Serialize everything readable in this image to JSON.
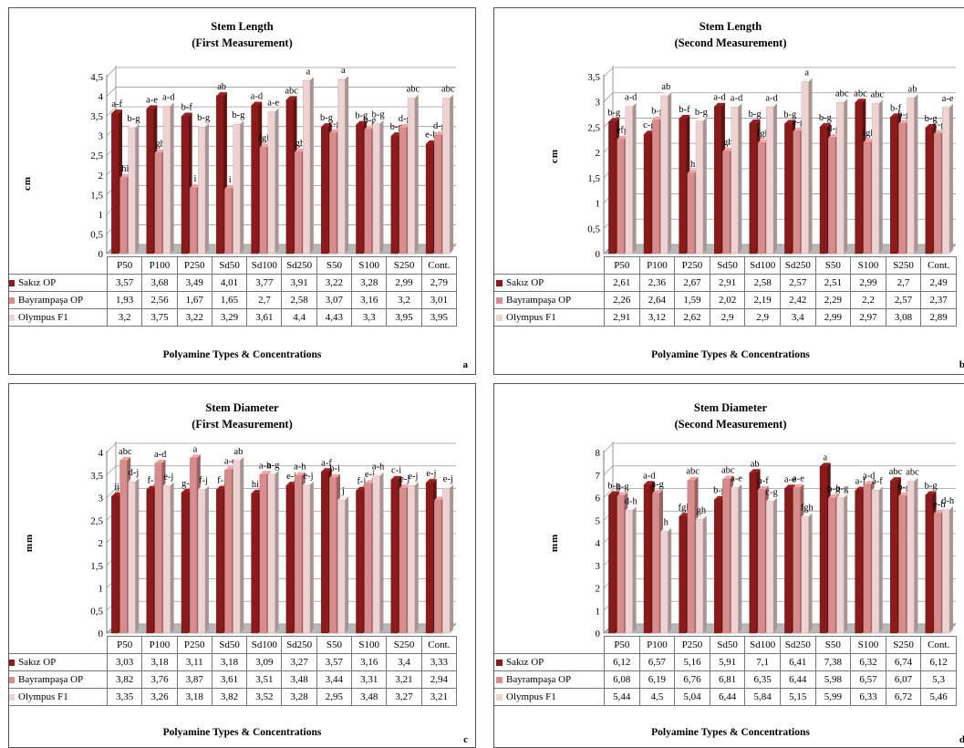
{
  "colors": {
    "sakiz": "#8b1a1a",
    "bayrampasa": "#d98c8c",
    "olympus": "#efd3d3",
    "grid": "#9a9a9a",
    "floor": "#b8b8b8"
  },
  "chart_data": [
    {
      "id": "a",
      "type": "bar",
      "title_line1": "Stem Length",
      "title_line2": "(First Measurement)",
      "ylabel": "cm",
      "xlabel": "Polyamine Types & Concentrations",
      "panel_label": "a",
      "ylim": [
        0,
        4.5
      ],
      "yticks": [
        "0",
        "0,5",
        "1",
        "1,5",
        "2",
        "2,5",
        "3",
        "3,5",
        "4",
        "4,5"
      ],
      "categories": [
        "P50",
        "P100",
        "P250",
        "Sd50",
        "Sd100",
        "Sd250",
        "S50",
        "S100",
        "S250",
        "Cont."
      ],
      "series": [
        {
          "name": "Sakız OP",
          "values": [
            3.57,
            3.68,
            3.49,
            4.01,
            3.77,
            3.91,
            3.22,
            3.28,
            2.99,
            2.79
          ],
          "display": [
            "3,57",
            "3,68",
            "3,49",
            "4,01",
            "3,77",
            "3,91",
            "3,22",
            "3,28",
            "2,99",
            "2,79"
          ],
          "letters": [
            "a-f",
            "a-e",
            "b-f",
            "ab",
            "a-d",
            "abc",
            "b-g",
            "b-g",
            "b-g",
            "e-h"
          ]
        },
        {
          "name": "Bayrampaşa OP",
          "values": [
            1.93,
            2.56,
            1.67,
            1.65,
            2.7,
            2.58,
            3.07,
            3.16,
            3.2,
            3.01
          ],
          "display": [
            "1,93",
            "2,56",
            "1,67",
            "1,65",
            "2,7",
            "2,58",
            "3,07",
            "3,16",
            "3,2",
            "3,01"
          ],
          "letters": [
            "hi",
            "gh",
            "i",
            "i",
            "fgh",
            "gh",
            "c-g",
            "b-g",
            "d-g",
            "d-g"
          ]
        },
        {
          "name": "Olympus F1",
          "values": [
            3.2,
            3.75,
            3.22,
            3.29,
            3.61,
            4.4,
            4.43,
            3.3,
            3.95,
            3.95
          ],
          "display": [
            "3,2",
            "3,75",
            "3,22",
            "3,29",
            "3,61",
            "4,4",
            "4,43",
            "3,3",
            "3,95",
            "3,95"
          ],
          "letters": [
            "b-g",
            "a-d",
            "b-g",
            "b-g",
            "a-e",
            "a",
            "a",
            "b-g",
            "abc",
            "abc"
          ]
        }
      ]
    },
    {
      "id": "b",
      "type": "bar",
      "title_line1": "Stem Length",
      "title_line2": "(Second Measurement)",
      "ylabel": "cm",
      "xlabel": "Polyamine Types & Concentrations",
      "panel_label": "b",
      "ylim": [
        0,
        3.5
      ],
      "yticks": [
        "0",
        "0,5",
        "1",
        "1,5",
        "2",
        "2,5",
        "3",
        "3,5"
      ],
      "categories": [
        "P50",
        "P100",
        "P250",
        "Sd50",
        "Sd100",
        "Sd250",
        "S50",
        "S100",
        "S250",
        "Cont."
      ],
      "series": [
        {
          "name": "Sakız OP",
          "values": [
            2.61,
            2.36,
            2.67,
            2.91,
            2.58,
            2.57,
            2.51,
            2.99,
            2.7,
            2.49
          ],
          "display": [
            "2,61",
            "2,36",
            "2,67",
            "2,91",
            "2,58",
            "2,57",
            "2,51",
            "2,99",
            "2,7",
            "2,49"
          ],
          "letters": [
            "b-g",
            "c-g",
            "b-f",
            "a-d",
            "b-g",
            "b-g",
            "b-g",
            "abc",
            "b-f",
            "b-g"
          ]
        },
        {
          "name": "Bayrampaşa OP",
          "values": [
            2.26,
            2.64,
            1.59,
            2.02,
            2.19,
            2.42,
            2.29,
            2.2,
            2.57,
            2.37
          ],
          "display": [
            "2,26",
            "2,64",
            "1,59",
            "2,02",
            "2,19",
            "2,42",
            "2,29",
            "2,2",
            "2,57",
            "2,37"
          ],
          "letters": [
            "efg",
            "b-g",
            "h",
            "gh",
            "fgh",
            "e-g",
            "d-g",
            "fgh",
            "b-g",
            "c-g"
          ]
        },
        {
          "name": "Olympus F1",
          "values": [
            2.91,
            3.12,
            2.62,
            2.9,
            2.9,
            3.4,
            2.99,
            2.97,
            3.08,
            2.89
          ],
          "display": [
            "2,91",
            "3,12",
            "2,62",
            "2,9",
            "2,9",
            "3,4",
            "2,99",
            "2,97",
            "3,08",
            "2,89"
          ],
          "letters": [
            "a-d",
            "ab",
            "b-g",
            "a-d",
            "a-d",
            "a",
            "abc",
            "abc",
            "ab",
            "a-e"
          ]
        }
      ]
    },
    {
      "id": "c",
      "type": "bar",
      "title_line1": "Stem Diameter",
      "title_line2": "(First Measurement)",
      "ylabel": "mm",
      "xlabel": "Polyamine Types & Concentrations",
      "panel_label": "c",
      "ylim": [
        0,
        4
      ],
      "yticks": [
        "0",
        "0,5",
        "1",
        "1,5",
        "2",
        "2,5",
        "3",
        "3,5",
        "4"
      ],
      "categories": [
        "P50",
        "P100",
        "P250",
        "Sd50",
        "Sd100",
        "Sd250",
        "S50",
        "S100",
        "S250",
        "Cont."
      ],
      "series": [
        {
          "name": "Sakız OP",
          "values": [
            3.03,
            3.18,
            3.11,
            3.18,
            3.09,
            3.27,
            3.57,
            3.16,
            3.4,
            3.33
          ],
          "display": [
            "3,03",
            "3,18",
            "3,11",
            "3,18",
            "3,09",
            "3,27",
            "3,57",
            "3,16",
            "3,4",
            "3,33"
          ],
          "letters": [
            "ij",
            "f-j",
            "g-j",
            "f-j",
            "hij",
            "e-j",
            "a-f",
            "f-j",
            "c-i",
            "e-j"
          ]
        },
        {
          "name": "Bayrampaşa OP",
          "values": [
            3.82,
            3.76,
            3.87,
            3.61,
            3.51,
            3.48,
            3.44,
            3.31,
            3.21,
            2.94
          ],
          "display": [
            "3,82",
            "3,76",
            "3,87",
            "3,61",
            "3,51",
            "3,48",
            "3,44",
            "3,31",
            "3,21",
            "2,94"
          ],
          "letters": [
            "abc",
            "a-d",
            "a",
            "a-e",
            "a-h",
            "a-h",
            "b-i",
            "e-j",
            "e-j",
            ""
          ]
        },
        {
          "name": "Olympus F1",
          "values": [
            3.35,
            3.26,
            3.18,
            3.82,
            3.52,
            3.28,
            2.95,
            3.48,
            3.27,
            3.21
          ],
          "display": [
            "3,35",
            "3,26",
            "3,18",
            "3,82",
            "3,52",
            "3,28",
            "2,95",
            "3,48",
            "3,27",
            "3,21"
          ],
          "letters": [
            "d-j",
            "e-j",
            "f-j",
            "ab",
            "a-g",
            "e-j",
            "j",
            "a-h",
            "e-j",
            "e-j"
          ]
        }
      ]
    },
    {
      "id": "d",
      "type": "bar",
      "title_line1": "Stem Diameter",
      "title_line2": "(Second Measurement)",
      "ylabel": "mm",
      "xlabel": "Polyamine Types & Concentrations",
      "panel_label": "d",
      "ylim": [
        0,
        8
      ],
      "yticks": [
        "0",
        "1",
        "2",
        "3",
        "4",
        "5",
        "6",
        "7",
        "8"
      ],
      "categories": [
        "P50",
        "P100",
        "P250",
        "Sd50",
        "Sd100",
        "Sd250",
        "S50",
        "S100",
        "S250",
        "Cont."
      ],
      "series": [
        {
          "name": "Sakız OP",
          "values": [
            6.12,
            6.57,
            5.16,
            5.91,
            7.1,
            6.41,
            7.38,
            6.32,
            6.74,
            6.12
          ],
          "display": [
            "6,12",
            "6,57",
            "5,16",
            "5,91",
            "7,1",
            "6,41",
            "7,38",
            "6,32",
            "6,74",
            "6,12"
          ],
          "letters": [
            "b-g",
            "a-d",
            "fgh",
            "b-g",
            "ab",
            "a-e",
            "a",
            "a-f",
            "abc",
            "b-g"
          ]
        },
        {
          "name": "Bayrampaşa OP",
          "values": [
            6.08,
            6.19,
            6.76,
            6.81,
            6.35,
            6.44,
            5.98,
            6.57,
            6.07,
            5.3
          ],
          "display": [
            "6,08",
            "6,19",
            "6,76",
            "6,81",
            "6,35",
            "6,44",
            "5,98",
            "6,57",
            "6,07",
            "5,3"
          ],
          "letters": [
            "b-g",
            "a-g",
            "abc",
            "abc",
            "a-f",
            "a-e",
            "b-g",
            "a-d",
            "b-g",
            "e-h"
          ]
        },
        {
          "name": "Olympus F1",
          "values": [
            5.44,
            4.5,
            5.04,
            6.44,
            5.84,
            5.15,
            5.99,
            6.33,
            6.72,
            5.46
          ],
          "display": [
            "5,44",
            "4,5",
            "5,04",
            "6,44",
            "5,84",
            "5,15",
            "5,99",
            "6,33",
            "6,72",
            "5,46"
          ],
          "letters": [
            "d-h",
            "h",
            "gh",
            "a-e",
            "c-g",
            "fgh",
            "b-g",
            "a-f",
            "abc",
            "d-h"
          ]
        }
      ]
    }
  ]
}
